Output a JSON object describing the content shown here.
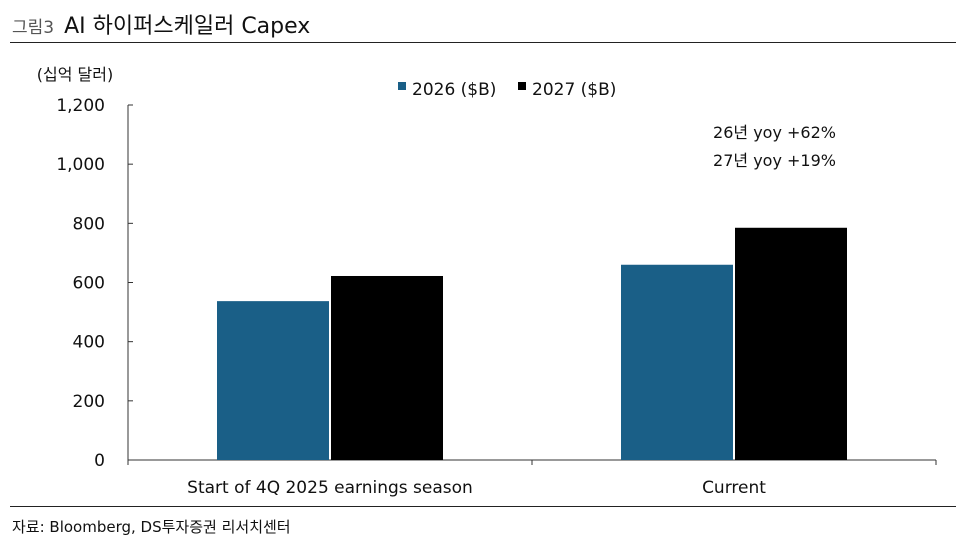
{
  "figure": {
    "number": "그림3",
    "title": "AI 하이퍼스케일러 Capex",
    "source": "자료: Bloomberg, DS투자증권 리서치센터"
  },
  "colors": {
    "series_2026": "#1a5f87",
    "series_2027": "#000000",
    "axis": "#333333"
  },
  "chart_data": {
    "type": "bar",
    "unit_label": "(십억 달러)",
    "categories": [
      "Start of 4Q 2025 earnings season",
      "Current"
    ],
    "series": [
      {
        "name": "2026 ($B)",
        "values": [
          537,
          660
        ]
      },
      {
        "name": "2027 ($B)",
        "values": [
          622,
          785
        ]
      }
    ],
    "ylim": [
      0,
      1200
    ],
    "yticks": [
      0,
      200,
      400,
      600,
      800,
      1000,
      1200
    ],
    "ytick_labels": [
      "0",
      "200",
      "400",
      "600",
      "800",
      "1,000",
      "1,200"
    ],
    "legend_position": "top-center",
    "grid": false,
    "annotations": [
      "26년 yoy +62%",
      "27년 yoy +19%"
    ]
  }
}
